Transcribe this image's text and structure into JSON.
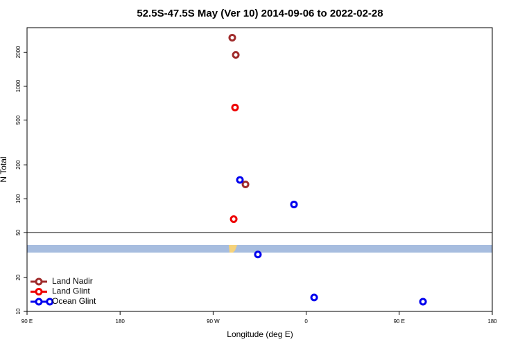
{
  "chart_data": {
    "type": "scatter",
    "title": "52.5S-47.5S May (Ver 10)   2014-09-06 to 2022-02-28",
    "x_label": "Longitude (deg E)",
    "y_label": "N Total",
    "y_scale": "log",
    "xlim": [
      90,
      540
    ],
    "ylim": [
      10,
      3300
    ],
    "xticks": [
      {
        "value": 90,
        "label": "90 E"
      },
      180,
      {
        "value": 270,
        "label": "90 W"
      },
      {
        "value": 360,
        "label": "0"
      },
      {
        "value": 450,
        "label": "90 E"
      },
      {
        "value": 540,
        "label": "180"
      }
    ],
    "yticks": [
      10,
      20,
      50,
      100,
      200,
      500,
      1000,
      2000
    ],
    "hline": 50,
    "legend": "bottom-left",
    "series": [
      {
        "name": "Land Nadir",
        "color": "#a02c2c",
        "x": [
          288.5,
          291.9,
          301.3
        ],
        "values": [
          2690,
          1890,
          134
        ]
      },
      {
        "name": "Land Glint",
        "color": "#ee0000",
        "x": [
          291.2,
          289.9
        ],
        "values": [
          645,
          66
        ]
      },
      {
        "name": "Ocean Glint",
        "color": "#0000ee",
        "x": [
          295.9,
          348.2,
          313.3,
          367.7,
          473,
          112
        ],
        "values": [
          147,
          89,
          32,
          13.3,
          12.2,
          12.2
        ]
      }
    ]
  }
}
